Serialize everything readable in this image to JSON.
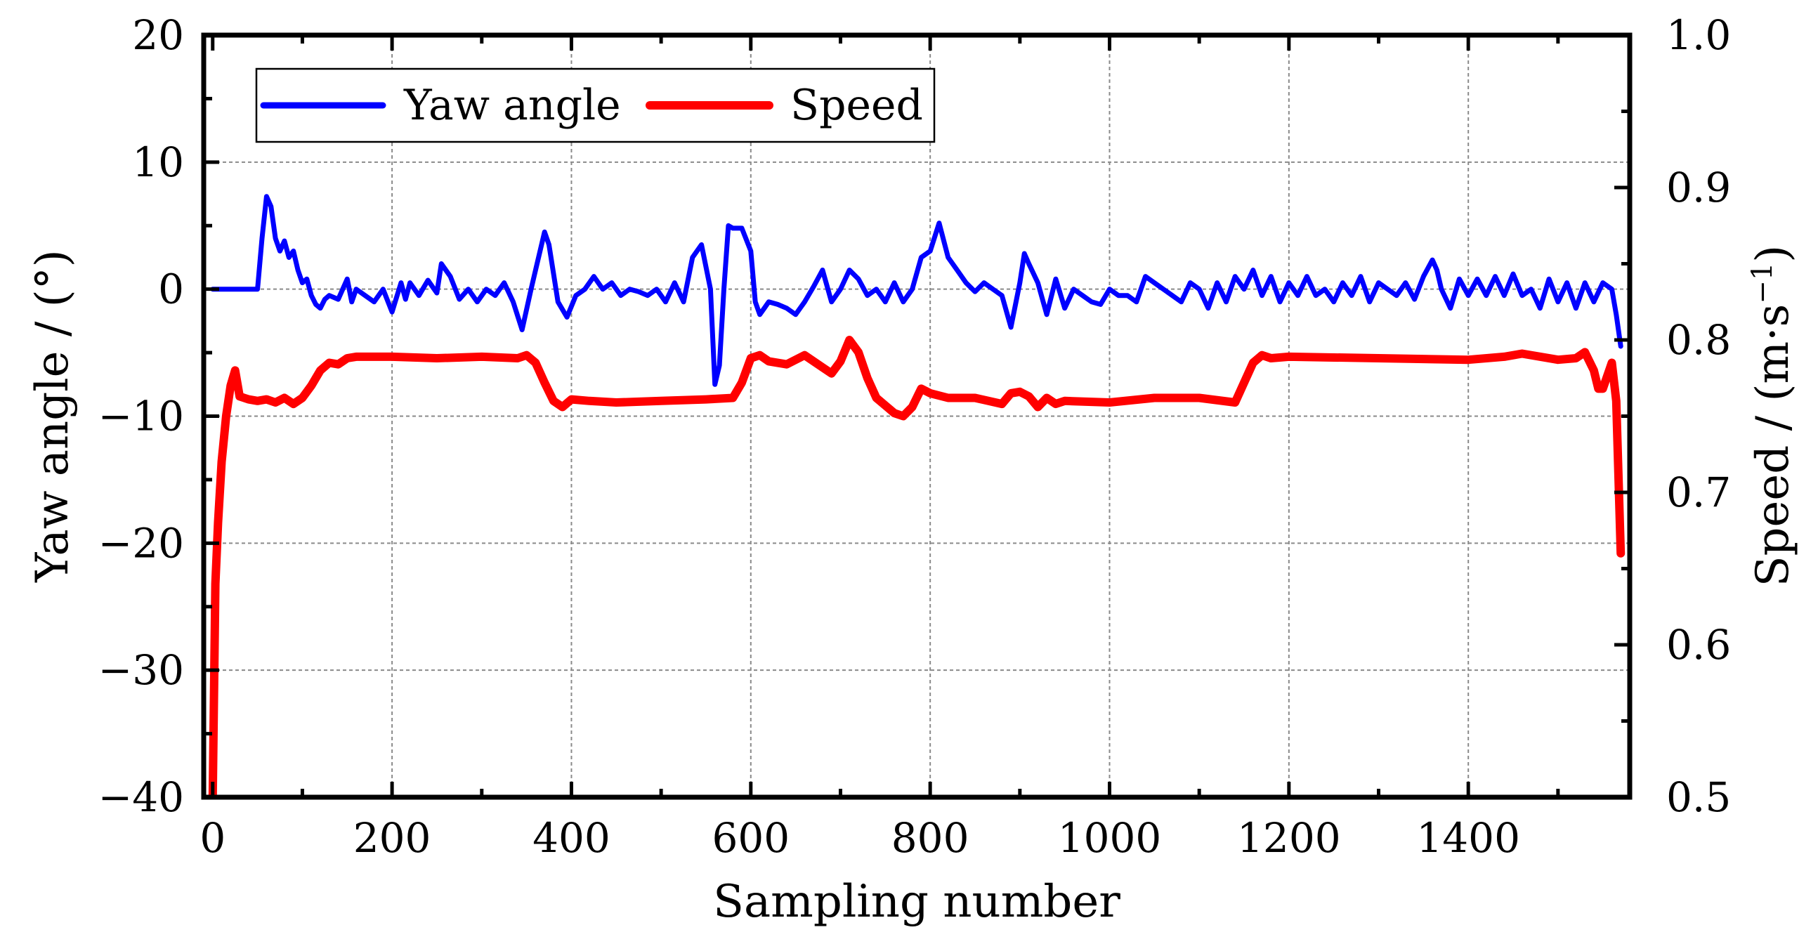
{
  "chart_data": {
    "type": "line",
    "title": "",
    "xlabel": "Sampling number",
    "ylabel_left": "Yaw angle / (°)",
    "ylabel_right_main": "Speed / (m·s",
    "ylabel_right_sup": "−1",
    "ylabel_right_close": ")",
    "xlim": [
      -10,
      1580
    ],
    "ylim_left": [
      -40,
      20
    ],
    "ylim_right": [
      0.5,
      1.0
    ],
    "xticks": [
      0,
      200,
      400,
      600,
      800,
      1000,
      1200,
      1400
    ],
    "xtick_labels": [
      "0",
      "200",
      "400",
      "600",
      "800",
      "1000",
      "1200",
      "1400"
    ],
    "yticks_left": [
      20,
      10,
      0,
      -10,
      -20,
      -30,
      -40
    ],
    "ytick_labels_left": [
      "20",
      "10",
      "0",
      "−10",
      "−20",
      "−30",
      "−40"
    ],
    "yticks_right": [
      1.0,
      0.9,
      0.8,
      0.7,
      0.6,
      0.5
    ],
    "ytick_labels_right": [
      "1.0",
      "0.9",
      "0.8",
      "0.7",
      "0.6",
      "0.5"
    ],
    "grid": true,
    "legend_position": "top-left",
    "series": [
      {
        "name": "Yaw angle",
        "axis": "left",
        "color": "#0000ff",
        "x": [
          0,
          50,
          55,
          60,
          65,
          70,
          75,
          80,
          85,
          90,
          95,
          100,
          105,
          110,
          115,
          120,
          125,
          130,
          140,
          150,
          155,
          160,
          170,
          180,
          190,
          200,
          210,
          215,
          220,
          230,
          240,
          250,
          255,
          265,
          275,
          285,
          295,
          305,
          315,
          325,
          335,
          345,
          355,
          360,
          370,
          375,
          385,
          395,
          405,
          415,
          425,
          435,
          445,
          455,
          465,
          475,
          485,
          495,
          505,
          515,
          525,
          535,
          545,
          555,
          560,
          565,
          570,
          575,
          580,
          590,
          600,
          605,
          610,
          615,
          620,
          630,
          640,
          650,
          660,
          670,
          680,
          690,
          700,
          710,
          720,
          730,
          740,
          750,
          760,
          770,
          780,
          790,
          800,
          810,
          820,
          825,
          830,
          840,
          850,
          860,
          870,
          880,
          890,
          900,
          905,
          910,
          920,
          930,
          940,
          950,
          960,
          970,
          980,
          990,
          1000,
          1010,
          1020,
          1030,
          1040,
          1050,
          1060,
          1070,
          1080,
          1090,
          1100,
          1110,
          1120,
          1130,
          1140,
          1150,
          1160,
          1170,
          1180,
          1190,
          1200,
          1210,
          1220,
          1230,
          1240,
          1250,
          1260,
          1270,
          1280,
          1290,
          1300,
          1310,
          1320,
          1330,
          1340,
          1350,
          1360,
          1365,
          1370,
          1380,
          1390,
          1400,
          1410,
          1420,
          1430,
          1440,
          1450,
          1460,
          1470,
          1480,
          1490,
          1500,
          1510,
          1520,
          1530,
          1540,
          1550,
          1560,
          1565,
          1570
        ],
        "y": [
          0,
          0,
          4,
          7.3,
          6.5,
          4,
          3,
          3.8,
          2.5,
          3,
          1.5,
          0.5,
          0.8,
          -0.5,
          -1.2,
          -1.5,
          -0.8,
          -0.5,
          -0.8,
          0.8,
          -1,
          0,
          -0.5,
          -1,
          0,
          -1.8,
          0.5,
          -0.8,
          0.5,
          -0.5,
          0.7,
          -0.3,
          2,
          1,
          -0.8,
          0,
          -1,
          0,
          -0.5,
          0.5,
          -1,
          -3.2,
          0,
          1.5,
          4.5,
          3.5,
          -1,
          -2.2,
          -0.5,
          0,
          1,
          0,
          0.5,
          -0.5,
          0,
          -0.2,
          -0.5,
          0,
          -1,
          0.5,
          -1,
          2.5,
          3.5,
          0,
          -7.5,
          -6,
          0,
          5,
          4.8,
          4.8,
          3,
          -1,
          -2,
          -1.5,
          -1,
          -1.2,
          -1.5,
          -2,
          -1,
          0.2,
          1.5,
          -1,
          0,
          1.5,
          0.8,
          -0.5,
          0,
          -1,
          0.5,
          -1,
          0,
          2.5,
          3,
          5.2,
          2.5,
          2,
          1.5,
          0.5,
          -0.2,
          0.5,
          0,
          -0.5,
          -3,
          0.5,
          2.8,
          2,
          0.5,
          -2,
          0.8,
          -1.5,
          0,
          -0.5,
          -1,
          -1.2,
          0,
          -0.5,
          -0.5,
          -1,
          1,
          0.5,
          0,
          -0.5,
          -1,
          0.5,
          0,
          -1.5,
          0.5,
          -1,
          1,
          0,
          1.5,
          -0.5,
          1,
          -1,
          0.5,
          -0.5,
          1,
          -0.5,
          0,
          -1,
          0.5,
          -0.5,
          1,
          -1,
          0.5,
          0,
          -0.5,
          0.5,
          -0.8,
          1,
          2.3,
          1.5,
          0,
          -1.5,
          0.8,
          -0.5,
          0.8,
          -0.5,
          1,
          -0.5,
          1.2,
          -0.5,
          0,
          -1.5,
          0.8,
          -1,
          0.5,
          -1.5,
          0.5,
          -1,
          0.5,
          0,
          -2,
          -4.5
        ]
      },
      {
        "name": "Speed",
        "axis": "right",
        "color": "#ff0000",
        "x": [
          0,
          3,
          6,
          10,
          15,
          20,
          25,
          30,
          35,
          40,
          50,
          60,
          70,
          80,
          90,
          100,
          110,
          120,
          130,
          140,
          150,
          160,
          180,
          200,
          250,
          300,
          340,
          350,
          360,
          370,
          380,
          390,
          400,
          420,
          450,
          500,
          550,
          580,
          590,
          600,
          610,
          620,
          640,
          660,
          680,
          690,
          700,
          710,
          720,
          730,
          740,
          750,
          760,
          770,
          780,
          790,
          800,
          820,
          850,
          880,
          890,
          900,
          910,
          920,
          930,
          940,
          950,
          1000,
          1050,
          1100,
          1140,
          1160,
          1170,
          1180,
          1200,
          1300,
          1400,
          1440,
          1460,
          1500,
          1520,
          1530,
          1540,
          1545,
          1550,
          1560,
          1565,
          1570
        ],
        "y": [
          0.5,
          0.64,
          0.68,
          0.72,
          0.75,
          0.77,
          0.78,
          0.763,
          0.762,
          0.761,
          0.76,
          0.761,
          0.759,
          0.762,
          0.758,
          0.762,
          0.77,
          0.78,
          0.785,
          0.784,
          0.788,
          0.789,
          0.789,
          0.789,
          0.788,
          0.789,
          0.788,
          0.79,
          0.785,
          0.772,
          0.76,
          0.756,
          0.761,
          0.76,
          0.759,
          0.76,
          0.761,
          0.762,
          0.772,
          0.788,
          0.79,
          0.786,
          0.784,
          0.79,
          0.782,
          0.778,
          0.786,
          0.8,
          0.792,
          0.775,
          0.762,
          0.757,
          0.752,
          0.75,
          0.756,
          0.768,
          0.765,
          0.762,
          0.762,
          0.758,
          0.765,
          0.766,
          0.763,
          0.756,
          0.762,
          0.758,
          0.76,
          0.759,
          0.762,
          0.762,
          0.759,
          0.785,
          0.79,
          0.788,
          0.789,
          0.788,
          0.787,
          0.789,
          0.791,
          0.787,
          0.788,
          0.792,
          0.78,
          0.768,
          0.768,
          0.785,
          0.76,
          0.66
        ]
      }
    ]
  }
}
